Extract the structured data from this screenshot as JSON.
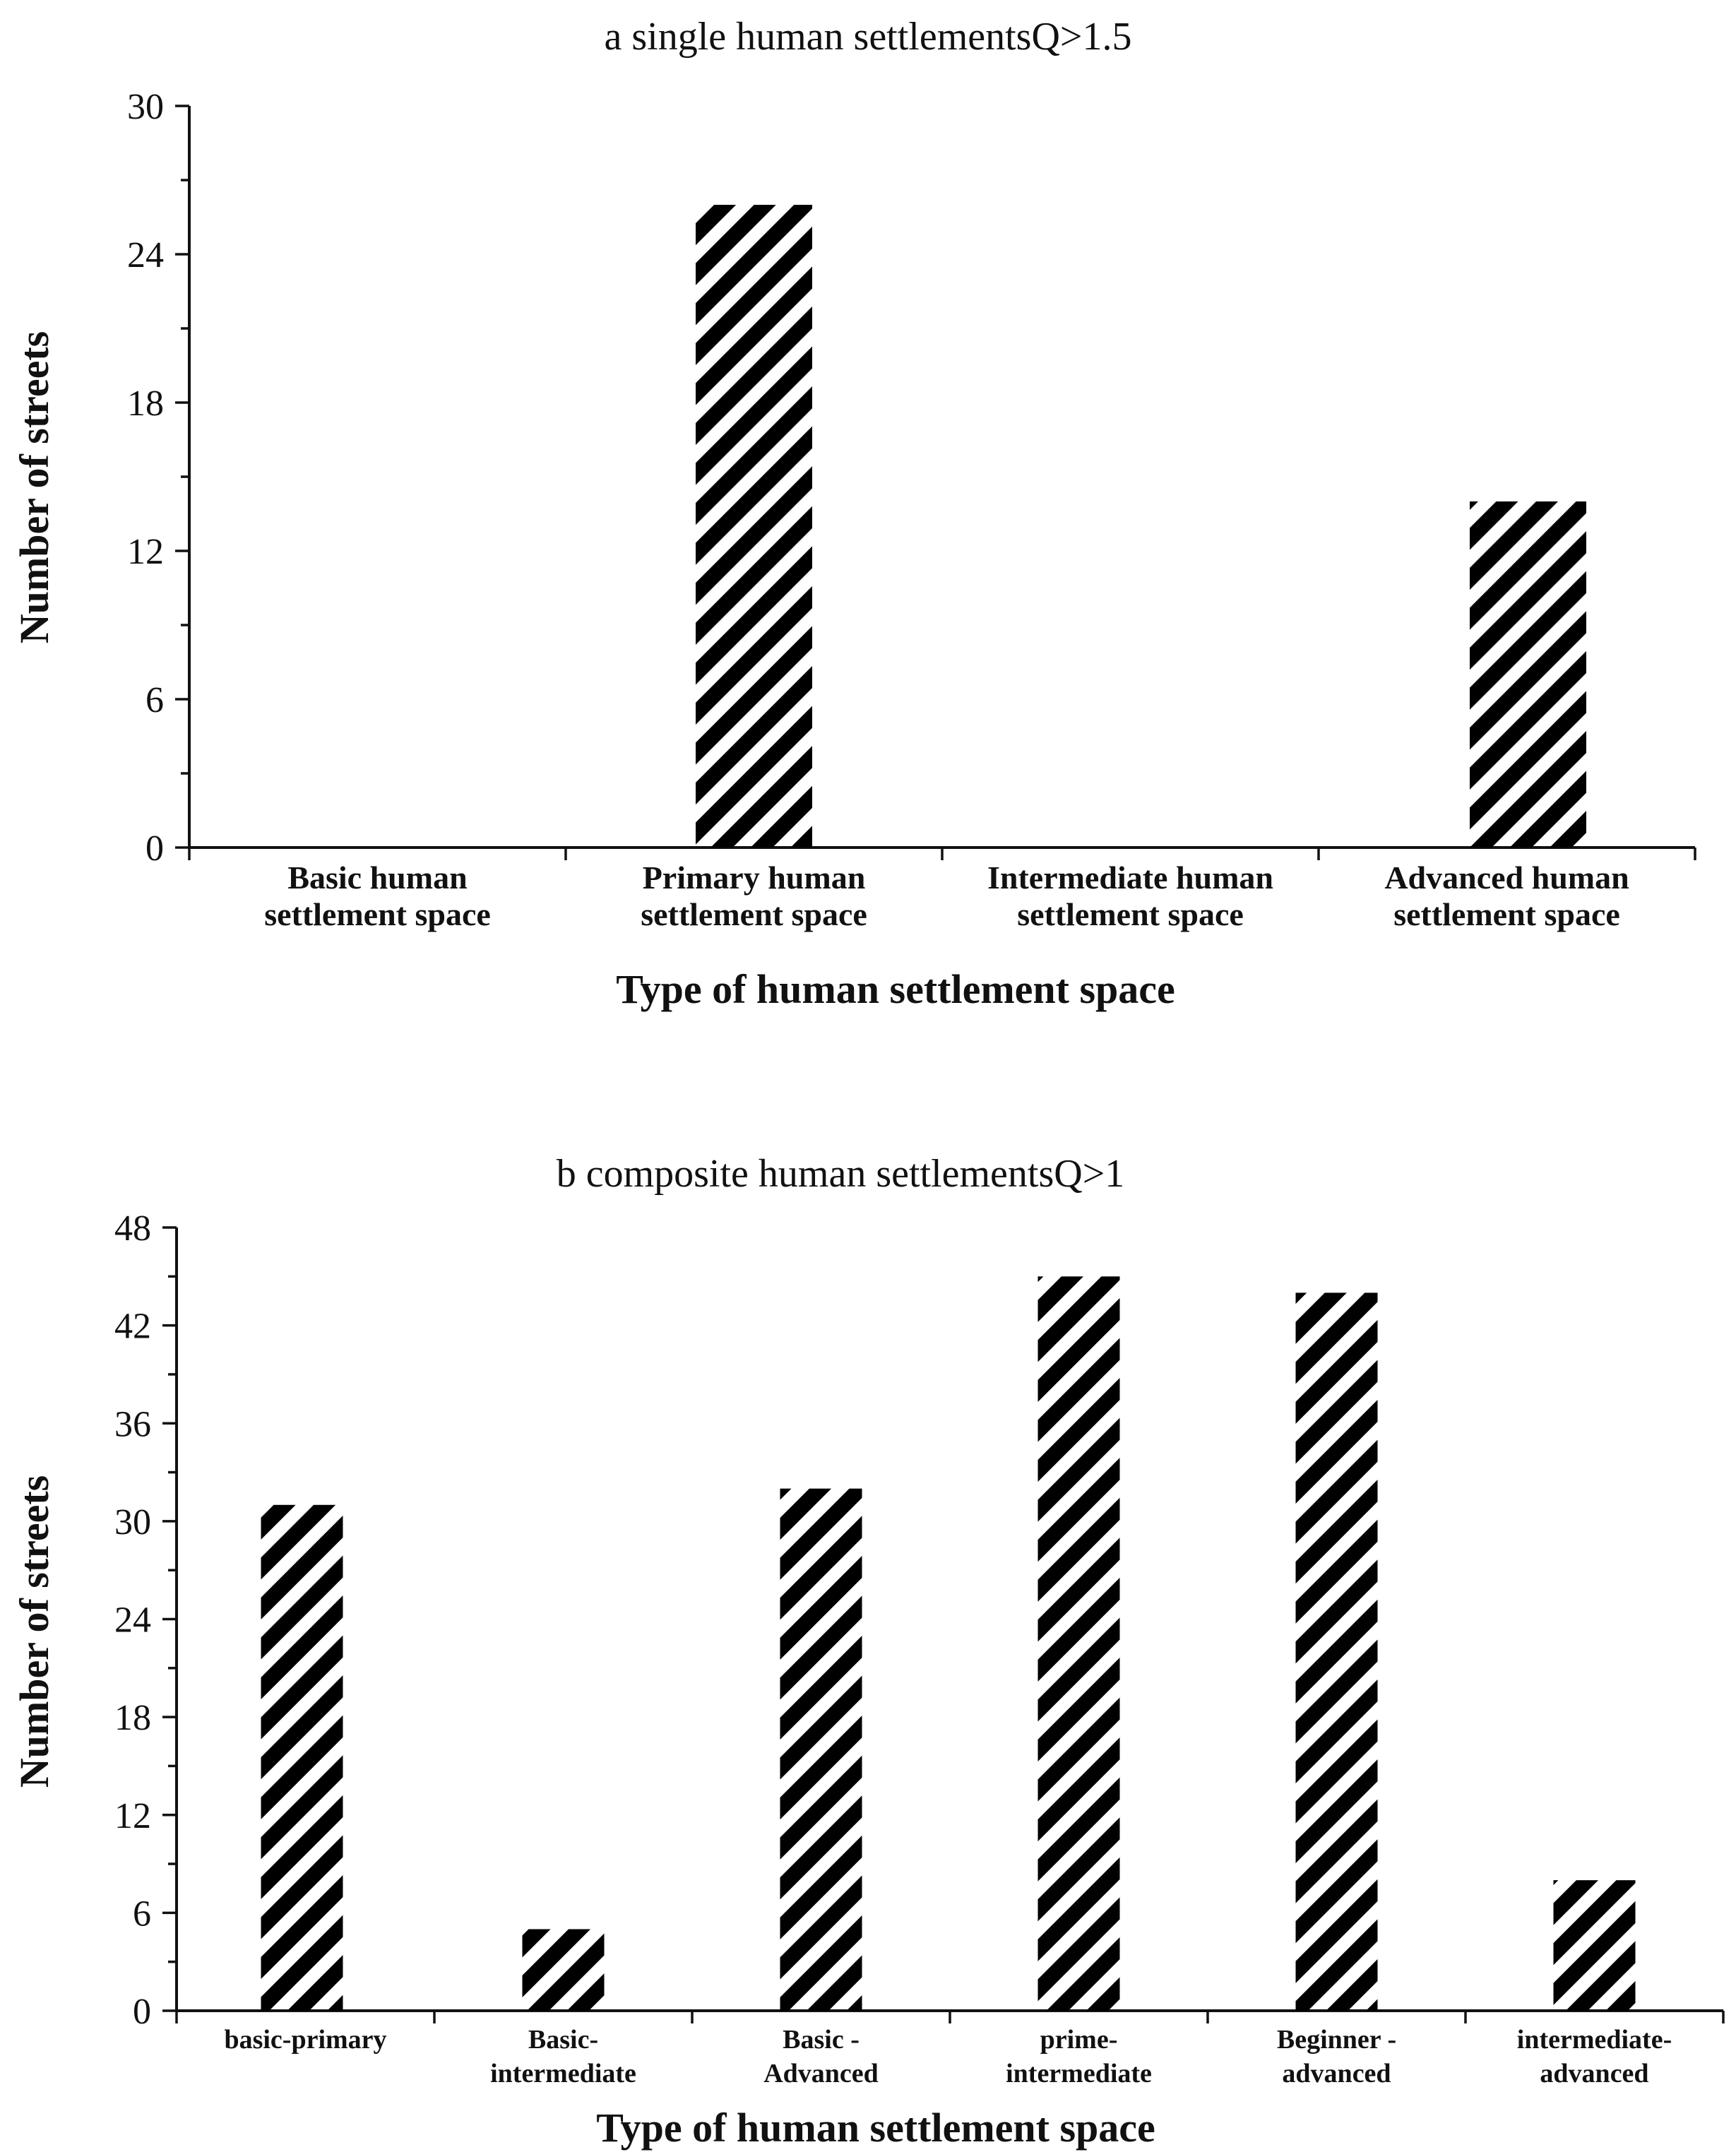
{
  "chart_data": [
    {
      "type": "bar",
      "title": "a single human settlementsQ>1.5",
      "xlabel": "Type of human settlement space",
      "ylabel": "Number of streets",
      "ylim": [
        0,
        30
      ],
      "yticks": [
        "0",
        "6",
        "12",
        "18",
        "24",
        "30"
      ],
      "categories": [
        [
          "Basic human",
          "settlement space"
        ],
        [
          "Primary human",
          "settlement space"
        ],
        [
          "Intermediate human",
          "settlement space"
        ],
        [
          "Advanced human",
          "settlement space"
        ]
      ],
      "values": [
        0,
        26,
        0,
        14
      ],
      "bar_pattern": "black diagonal hatch",
      "grid": false
    },
    {
      "type": "bar",
      "title": "b composite human settlementsQ>1",
      "xlabel": "Type of human settlement space",
      "ylabel": "Number of streets",
      "ylim": [
        0,
        48
      ],
      "yticks": [
        "0",
        "6",
        "12",
        "18",
        "24",
        "30",
        "36",
        "42",
        "48"
      ],
      "categories": [
        [
          "basic-primary"
        ],
        [
          "Basic-",
          "intermediate"
        ],
        [
          "Basic -",
          "Advanced"
        ],
        [
          "prime-",
          "intermediate"
        ],
        [
          "Beginner -",
          "advanced"
        ],
        [
          "intermediate-",
          "advanced"
        ]
      ],
      "values": [
        31,
        5,
        32,
        45,
        44,
        8
      ],
      "bar_pattern": "black diagonal hatch",
      "grid": false
    }
  ],
  "colors": {
    "bar_fill": "#000000",
    "axis": "#111111",
    "background": "#ffffff"
  }
}
